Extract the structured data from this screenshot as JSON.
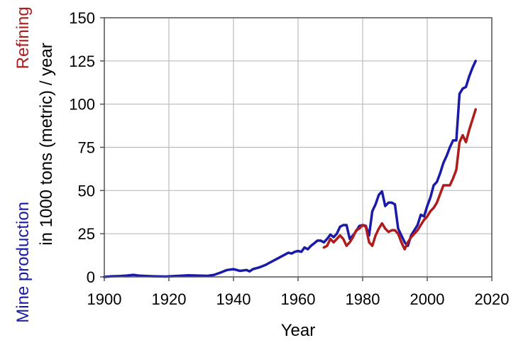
{
  "chart_data": {
    "type": "line",
    "title": "",
    "xlabel": "Year",
    "ylabel_parts": [
      {
        "text": "Mine production",
        "color": "#1a1aa8"
      },
      {
        "text": "Refining",
        "color": "#b01c1c"
      },
      {
        "text": "in 1000 tons (metric) / year",
        "color": "#000000"
      }
    ],
    "xlim": [
      1900,
      2020
    ],
    "ylim": [
      0,
      150
    ],
    "xticks": [
      1900,
      1920,
      1940,
      1960,
      1980,
      2000,
      2020
    ],
    "yticks": [
      0,
      25,
      50,
      75,
      100,
      125,
      150
    ],
    "grid": true,
    "legend": "none",
    "series": [
      {
        "name": "Mine production",
        "color": "#1a1aa8",
        "x": [
          1900,
          1902,
          1905,
          1907,
          1909,
          1911,
          1913,
          1916,
          1919,
          1921,
          1923,
          1926,
          1929,
          1932,
          1934,
          1936,
          1938,
          1940,
          1942,
          1944,
          1945,
          1946,
          1947,
          1948,
          1950,
          1951,
          1953,
          1955,
          1956,
          1957,
          1958,
          1959,
          1960,
          1961,
          1962,
          1963,
          1964,
          1965,
          1966,
          1967,
          1968,
          1969,
          1970,
          1971,
          1972,
          1973,
          1974,
          1975,
          1976,
          1977,
          1978,
          1979,
          1980,
          1981,
          1982,
          1983,
          1984,
          1985,
          1986,
          1987,
          1988,
          1989,
          1990,
          1991,
          1992,
          1993,
          1994,
          1995,
          1996,
          1997,
          1998,
          1999,
          2000,
          2001,
          2002,
          2003,
          2004,
          2005,
          2006,
          2007,
          2008,
          2009,
          2010,
          2011,
          2012,
          2013,
          2014,
          2015
        ],
        "values": [
          0,
          0.3,
          0.5,
          0.8,
          1.2,
          0.7,
          0.5,
          0.3,
          0.2,
          0.4,
          0.6,
          0.9,
          0.8,
          0.6,
          1.2,
          2.5,
          4,
          4.5,
          3.5,
          4,
          3.2,
          4.5,
          5,
          5.5,
          7,
          8,
          10,
          12,
          13,
          14,
          13.5,
          14.5,
          15,
          14.5,
          17,
          16,
          18,
          19.5,
          21,
          21,
          20,
          22,
          24.5,
          23,
          25,
          29,
          30,
          30,
          22,
          24,
          26.5,
          29.5,
          30,
          29.5,
          24,
          38,
          42,
          47.5,
          49.5,
          41,
          43,
          43,
          42,
          28,
          24,
          20,
          18,
          24,
          27,
          30,
          36,
          35,
          41,
          46,
          53,
          55,
          60,
          66,
          70,
          75,
          79,
          79,
          106,
          109,
          110,
          116,
          121,
          125
        ]
      },
      {
        "name": "Refining",
        "color": "#b01c1c",
        "x": [
          1968,
          1969,
          1970,
          1971,
          1972,
          1973,
          1974,
          1975,
          1976,
          1977,
          1978,
          1979,
          1980,
          1981,
          1982,
          1983,
          1984,
          1985,
          1986,
          1987,
          1988,
          1989,
          1990,
          1991,
          1992,
          1993,
          1994,
          1995,
          1996,
          1997,
          1998,
          1999,
          2000,
          2001,
          2002,
          2003,
          2004,
          2005,
          2006,
          2007,
          2008,
          2009,
          2010,
          2011,
          2012,
          2013,
          2014,
          2015
        ],
        "values": [
          17,
          18,
          22,
          20,
          22,
          24,
          22,
          18,
          20,
          23,
          27,
          28,
          30,
          29,
          20,
          18,
          24,
          28,
          31,
          28,
          26,
          27,
          27,
          25,
          20,
          16,
          20,
          23,
          25,
          27,
          30,
          33,
          35,
          38,
          40,
          43,
          48,
          53,
          53,
          53,
          57,
          62,
          78,
          82,
          78,
          85,
          91,
          97
        ]
      }
    ]
  }
}
